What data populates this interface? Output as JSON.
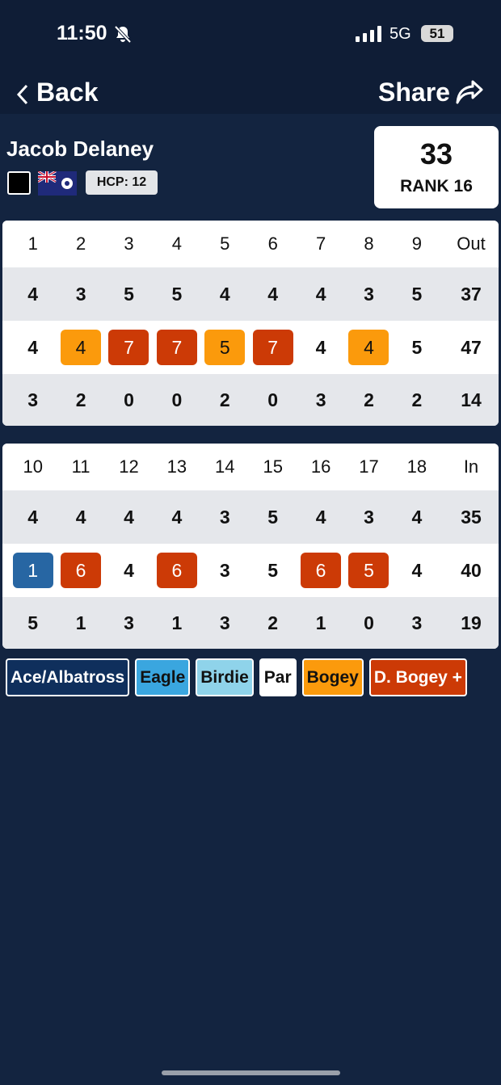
{
  "status_bar": {
    "time": "11:50",
    "network": "5G",
    "battery": "51"
  },
  "nav": {
    "back": "Back",
    "share": "Share"
  },
  "player": {
    "name": "Jacob Delaney",
    "handicap": "HCP: 12",
    "score": "33",
    "rank": "RANK 16"
  },
  "front_nine": {
    "holes": [
      "1",
      "2",
      "3",
      "4",
      "5",
      "6",
      "7",
      "8",
      "9",
      "Out"
    ],
    "par": [
      4,
      3,
      5,
      5,
      4,
      4,
      4,
      3,
      5,
      37
    ],
    "score": [
      4,
      4,
      7,
      7,
      5,
      7,
      4,
      4,
      5,
      47
    ],
    "points": [
      3,
      2,
      0,
      0,
      2,
      0,
      3,
      2,
      2,
      14
    ]
  },
  "back_nine": {
    "holes": [
      "10",
      "11",
      "12",
      "13",
      "14",
      "15",
      "16",
      "17",
      "18",
      "In"
    ],
    "par": [
      4,
      4,
      4,
      4,
      3,
      5,
      4,
      3,
      4,
      35
    ],
    "score": [
      1,
      6,
      4,
      6,
      3,
      5,
      6,
      5,
      4,
      40
    ],
    "points": [
      5,
      1,
      3,
      1,
      3,
      2,
      1,
      0,
      3,
      19
    ]
  },
  "legend": [
    {
      "label": "Ace/Albatross",
      "to_par": -3,
      "color": "#0f2f5c",
      "cell_color": "#2766a3",
      "text_color": "#ffffff"
    },
    {
      "label": "Eagle",
      "to_par": -2,
      "color": "#3aa6df",
      "text_color": "#111111"
    },
    {
      "label": "Birdie",
      "to_par": -1,
      "color": "#8fd3ea",
      "text_color": "#111111"
    },
    {
      "label": "Par",
      "to_par": 0,
      "color": "#ffffff",
      "text_color": "#111111"
    },
    {
      "label": "Bogey",
      "to_par": 1,
      "color": "#fb9a0c",
      "text_color": "#111111"
    },
    {
      "label": "D. Bogey +",
      "to_par": 2,
      "color": "#cc3a06",
      "text_color": "#ffffff"
    }
  ]
}
